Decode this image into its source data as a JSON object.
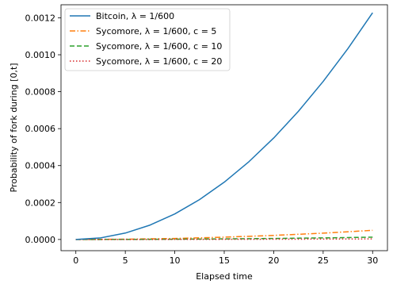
{
  "chart_data": {
    "type": "line",
    "title": "",
    "xlabel": "Elapsed time",
    "ylabel": "Probability of fork during [0,t]",
    "xlim": [
      -1.5,
      31.5
    ],
    "ylim": [
      -6.07e-05,
      0.0012707
    ],
    "x_ticks": [
      0,
      5,
      10,
      15,
      20,
      25,
      30
    ],
    "x_tick_labels": [
      "0",
      "5",
      "10",
      "15",
      "20",
      "25",
      "30"
    ],
    "y_ticks": [
      0,
      0.0002,
      0.0004,
      0.0006,
      0.0008,
      0.001,
      0.0012
    ],
    "y_tick_labels": [
      "0.0000",
      "0.0002",
      "0.0004",
      "0.0006",
      "0.0008",
      "0.0010",
      "0.0012"
    ],
    "grid": false,
    "legend_position": "top-left",
    "series": [
      {
        "name": "Bitcoin, λ = 1/600",
        "color": "#1f77b4",
        "style": "solid",
        "x": [
          0,
          2.5,
          5,
          7.5,
          10,
          12.5,
          15,
          17.5,
          20,
          22.5,
          25,
          27.5,
          30
        ],
        "y": [
          0,
          8.7e-06,
          3.47e-05,
          7.79e-05,
          0.0001383,
          0.0002157,
          0.0003101,
          0.0004213,
          0.0005493,
          0.0006941,
          0.0008554,
          0.0010332,
          0.0012274
        ]
      },
      {
        "name": "Sycomore, λ = 1/600, c = 5",
        "color": "#ff7f0e",
        "style": "dashdot",
        "x": [
          0,
          5,
          10,
          15,
          20,
          25,
          30
        ],
        "y": [
          0,
          1.4e-06,
          5.5e-06,
          1.24e-05,
          2.2e-05,
          3.43e-05,
          4.94e-05
        ]
      },
      {
        "name": "Sycomore, λ = 1/600, c = 10",
        "color": "#2ca02c",
        "style": "dashed",
        "x": [
          0,
          5,
          10,
          15,
          20,
          25,
          30
        ],
        "y": [
          0,
          4e-07,
          1.4e-06,
          3.1e-06,
          5.5e-06,
          8.6e-06,
          1.24e-05
        ]
      },
      {
        "name": "Sycomore, λ = 1/600, c = 20",
        "color": "#d62728",
        "style": "dotted",
        "x": [
          0,
          5,
          10,
          15,
          20,
          25,
          30
        ],
        "y": [
          0,
          1e-07,
          3e-07,
          8e-07,
          1.4e-06,
          2.1e-06,
          3.1e-06
        ]
      }
    ]
  }
}
